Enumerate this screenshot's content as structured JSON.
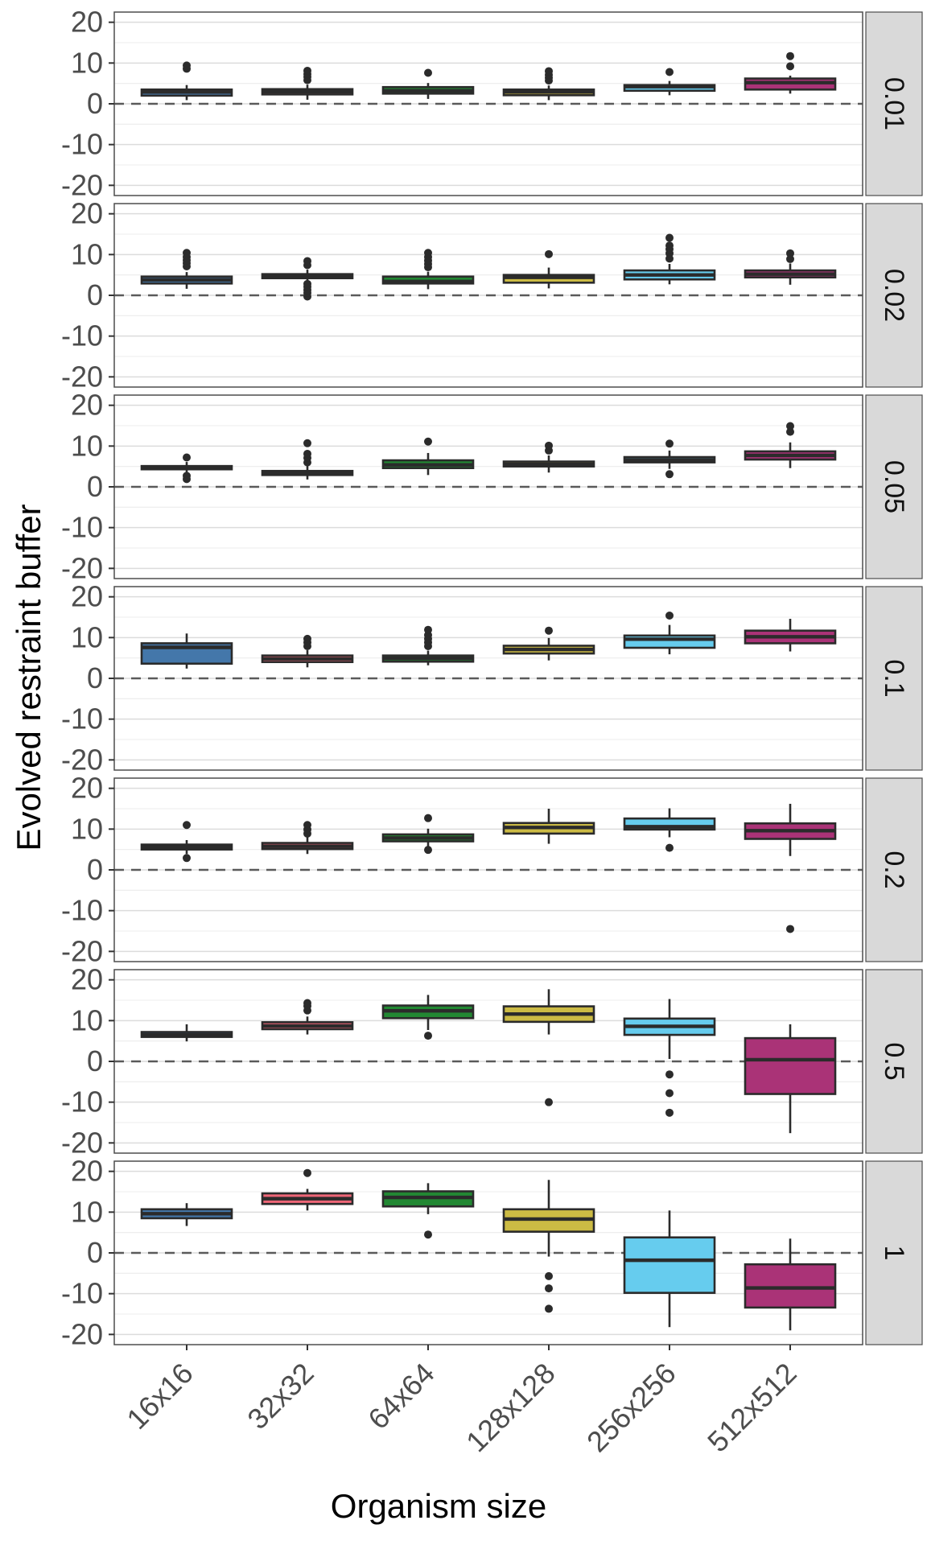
{
  "figure": {
    "y_axis_title": "Evolved restraint buffer",
    "x_axis_title": "Organism size"
  },
  "chart_data": {
    "type": "boxplot",
    "title": "",
    "xlabel": "Organism size",
    "ylabel": "Evolved restraint buffer",
    "layout_hint": "7 stacked facet rows sharing the x-axis; facet strip labels rotated on the right; dashed reference line at y=0; grid on (major -20..20 step 10, minor step 5); x tick labels rotated 45 degrees",
    "categories": [
      "16x16",
      "32x32",
      "64x64",
      "128x128",
      "256x256",
      "512x512"
    ],
    "category_colors": [
      "#4477AA",
      "#EE6677",
      "#228833",
      "#CCBB44",
      "#66CCEE",
      "#AA3377"
    ],
    "y_ticks": [
      20,
      10,
      0,
      -10,
      -20
    ],
    "ylim": [
      -22.5,
      22.5
    ],
    "grid": {
      "major": [
        -20,
        -10,
        0,
        10,
        20
      ],
      "minor": [
        -15,
        -5,
        5,
        15
      ]
    },
    "reference_line_y": 0,
    "facet_variable_values": [
      "0.01",
      "0.02",
      "0.05",
      "0.1",
      "0.2",
      "0.5",
      "1"
    ],
    "style": {
      "strip_bg": "#d9d9d9",
      "strip_text": "#111111",
      "panel_border": "#4d4d4d",
      "grid_major": "#dcdcdc",
      "grid_minor": "#ececec",
      "box_stroke": "#2b2b2b",
      "ref_line": "#5a5a5a",
      "tick_color": "#333333",
      "tick_label_color": "#4d4d4d",
      "title_color": "#000000"
    },
    "facets": [
      {
        "label": "0.01",
        "boxes": [
          {
            "category": "16x16",
            "whisker_low": 0.9,
            "q1": 2.0,
            "median": 2.9,
            "q3": 3.5,
            "whisker_high": 4.6,
            "outliers": [
              8.6,
              9.4
            ]
          },
          {
            "category": "32x32",
            "whisker_low": 1.0,
            "q1": 2.3,
            "median": 3.0,
            "q3": 3.6,
            "whisker_high": 4.7,
            "outliers": [
              5.8,
              6.6,
              7.3,
              8.1
            ]
          },
          {
            "category": "64x64",
            "whisker_low": 1.2,
            "q1": 2.5,
            "median": 3.2,
            "q3": 4.1,
            "whisker_high": 5.1,
            "outliers": [
              7.6
            ]
          },
          {
            "category": "128x128",
            "whisker_low": 0.9,
            "q1": 2.1,
            "median": 2.9,
            "q3": 3.5,
            "whisker_high": 4.5,
            "outliers": [
              5.7,
              6.4,
              7.1,
              8.0
            ]
          },
          {
            "category": "256x256",
            "whisker_low": 2.1,
            "q1": 3.2,
            "median": 4.2,
            "q3": 4.6,
            "whisker_high": 5.6,
            "outliers": [
              7.8
            ]
          },
          {
            "category": "512x512",
            "whisker_low": 2.5,
            "q1": 3.5,
            "median": 5.2,
            "q3": 6.2,
            "whisker_high": 6.9,
            "outliers": [
              9.2,
              11.7
            ]
          }
        ]
      },
      {
        "label": "0.02",
        "boxes": [
          {
            "category": "16x16",
            "whisker_low": 1.6,
            "q1": 2.9,
            "median": 3.8,
            "q3": 4.6,
            "whisker_high": 5.7,
            "outliers": [
              7.1,
              7.9,
              8.6,
              9.4,
              10.4
            ]
          },
          {
            "category": "32x32",
            "whisker_low": 3.3,
            "q1": 4.2,
            "median": 4.7,
            "q3": 5.2,
            "whisker_high": 6.3,
            "outliers": [
              -0.3,
              0.6,
              1.3,
              2.1,
              2.8,
              7.4,
              8.4
            ]
          },
          {
            "category": "64x64",
            "whisker_low": 1.5,
            "q1": 2.9,
            "median": 3.4,
            "q3": 4.6,
            "whisker_high": 5.8,
            "outliers": [
              6.9,
              7.7,
              8.5,
              9.4,
              10.4
            ]
          },
          {
            "category": "128x128",
            "whisker_low": 1.7,
            "q1": 3.1,
            "median": 4.4,
            "q3": 5.0,
            "whisker_high": 6.8,
            "outliers": [
              10.1
            ]
          },
          {
            "category": "256x256",
            "whisker_low": 2.7,
            "q1": 3.9,
            "median": 5.0,
            "q3": 6.1,
            "whisker_high": 7.7,
            "outliers": [
              9.0,
              10.3,
              11.3,
              12.2,
              14.1
            ]
          },
          {
            "category": "512x512",
            "whisker_low": 2.6,
            "q1": 4.4,
            "median": 5.2,
            "q3": 6.1,
            "whisker_high": 7.8,
            "outliers": [
              8.9,
              10.3
            ]
          }
        ]
      },
      {
        "label": "0.05",
        "boxes": [
          {
            "category": "16x16",
            "whisker_low": 3.3,
            "q1": 4.3,
            "median": 4.7,
            "q3": 5.1,
            "whisker_high": 6.1,
            "outliers": [
              1.9,
              2.7,
              7.2
            ]
          },
          {
            "category": "32x32",
            "whisker_low": 1.8,
            "q1": 2.9,
            "median": 3.3,
            "q3": 3.9,
            "whisker_high": 5.1,
            "outliers": [
              6.0,
              7.1,
              8.1,
              10.7
            ]
          },
          {
            "category": "64x64",
            "whisker_low": 2.9,
            "q1": 4.6,
            "median": 5.4,
            "q3": 6.5,
            "whisker_high": 8.3,
            "outliers": [
              11.1
            ]
          },
          {
            "category": "128x128",
            "whisker_low": 3.5,
            "q1": 5.0,
            "median": 5.5,
            "q3": 6.2,
            "whisker_high": 7.7,
            "outliers": [
              8.9,
              10.1
            ]
          },
          {
            "category": "256x256",
            "whisker_low": 4.4,
            "q1": 6.0,
            "median": 6.6,
            "q3": 7.3,
            "whisker_high": 8.9,
            "outliers": [
              3.1,
              10.6
            ]
          },
          {
            "category": "512x512",
            "whisker_low": 4.6,
            "q1": 6.7,
            "median": 7.7,
            "q3": 8.7,
            "whisker_high": 10.9,
            "outliers": [
              13.5,
              14.9
            ]
          }
        ]
      },
      {
        "label": "0.1",
        "boxes": [
          {
            "category": "16x16",
            "whisker_low": 2.4,
            "q1": 3.6,
            "median": 7.6,
            "q3": 8.6,
            "whisker_high": 11.0,
            "outliers": []
          },
          {
            "category": "32x32",
            "whisker_low": 2.7,
            "q1": 4.0,
            "median": 4.8,
            "q3": 5.6,
            "whisker_high": 6.9,
            "outliers": [
              7.9,
              8.8,
              9.7
            ]
          },
          {
            "category": "64x64",
            "whisker_low": 3.2,
            "q1": 4.1,
            "median": 4.9,
            "q3": 5.6,
            "whisker_high": 6.8,
            "outliers": [
              7.9,
              8.8,
              9.7,
              10.6,
              11.9
            ]
          },
          {
            "category": "128x128",
            "whisker_low": 4.4,
            "q1": 6.1,
            "median": 7.1,
            "q3": 8.0,
            "whisker_high": 9.9,
            "outliers": [
              11.7
            ]
          },
          {
            "category": "256x256",
            "whisker_low": 5.9,
            "q1": 7.5,
            "median": 9.6,
            "q3": 10.5,
            "whisker_high": 13.1,
            "outliers": [
              15.4
            ]
          },
          {
            "category": "512x512",
            "whisker_low": 6.6,
            "q1": 8.6,
            "median": 10.2,
            "q3": 11.7,
            "whisker_high": 14.6,
            "outliers": []
          }
        ]
      },
      {
        "label": "0.2",
        "boxes": [
          {
            "category": "16x16",
            "whisker_low": 3.9,
            "q1": 5.0,
            "median": 5.6,
            "q3": 6.2,
            "whisker_high": 7.3,
            "outliers": [
              2.9,
              11.0
            ]
          },
          {
            "category": "32x32",
            "whisker_low": 3.9,
            "q1": 5.1,
            "median": 5.8,
            "q3": 6.6,
            "whisker_high": 8.1,
            "outliers": [
              8.9,
              9.9,
              11.0
            ]
          },
          {
            "category": "64x64",
            "whisker_low": 5.8,
            "q1": 7.0,
            "median": 7.8,
            "q3": 8.7,
            "whisker_high": 10.1,
            "outliers": [
              4.9,
              12.7
            ]
          },
          {
            "category": "128x128",
            "whisker_low": 6.4,
            "q1": 8.9,
            "median": 10.4,
            "q3": 11.5,
            "whisker_high": 15.0,
            "outliers": []
          },
          {
            "category": "256x256",
            "whisker_low": 8.0,
            "q1": 9.9,
            "median": 10.6,
            "q3": 12.6,
            "whisker_high": 15.1,
            "outliers": [
              5.4
            ]
          },
          {
            "category": "512x512",
            "whisker_low": 3.4,
            "q1": 7.6,
            "median": 9.6,
            "q3": 11.4,
            "whisker_high": 16.2,
            "outliers": [
              -14.5
            ]
          }
        ]
      },
      {
        "label": "0.5",
        "boxes": [
          {
            "category": "16x16",
            "whisker_low": 4.9,
            "q1": 6.0,
            "median": 6.5,
            "q3": 7.2,
            "whisker_high": 9.1,
            "outliers": []
          },
          {
            "category": "32x32",
            "whisker_low": 6.6,
            "q1": 7.9,
            "median": 8.7,
            "q3": 9.6,
            "whisker_high": 11.0,
            "outliers": [
              12.5,
              13.6,
              14.3
            ]
          },
          {
            "category": "64x64",
            "whisker_low": 7.7,
            "q1": 10.6,
            "median": 12.4,
            "q3": 13.7,
            "whisker_high": 16.3,
            "outliers": [
              6.3
            ]
          },
          {
            "category": "128x128",
            "whisker_low": 6.6,
            "q1": 9.7,
            "median": 11.6,
            "q3": 13.5,
            "whisker_high": 17.7,
            "outliers": [
              -10.0
            ]
          },
          {
            "category": "256x256",
            "whisker_low": 0.6,
            "q1": 6.5,
            "median": 8.6,
            "q3": 10.5,
            "whisker_high": 15.3,
            "outliers": [
              -3.2,
              -7.8,
              -12.6
            ]
          },
          {
            "category": "512x512",
            "whisker_low": -17.6,
            "q1": -8.0,
            "median": 0.4,
            "q3": 5.7,
            "whisker_high": 9.1,
            "outliers": []
          }
        ]
      },
      {
        "label": "1",
        "boxes": [
          {
            "category": "16x16",
            "whisker_low": 6.6,
            "q1": 8.5,
            "median": 9.6,
            "q3": 10.7,
            "whisker_high": 12.2,
            "outliers": []
          },
          {
            "category": "32x32",
            "whisker_low": 10.4,
            "q1": 12.0,
            "median": 13.3,
            "q3": 14.6,
            "whisker_high": 15.7,
            "outliers": [
              19.6
            ]
          },
          {
            "category": "64x64",
            "whisker_low": 9.5,
            "q1": 11.4,
            "median": 13.6,
            "q3": 15.1,
            "whisker_high": 17.1,
            "outliers": [
              4.5
            ]
          },
          {
            "category": "128x128",
            "whisker_low": -0.9,
            "q1": 5.2,
            "median": 8.3,
            "q3": 10.7,
            "whisker_high": 17.9,
            "outliers": [
              -5.7,
              -8.7,
              -13.7
            ]
          },
          {
            "category": "256x256",
            "whisker_low": -18.2,
            "q1": -9.8,
            "median": -1.8,
            "q3": 3.8,
            "whisker_high": 10.4,
            "outliers": []
          },
          {
            "category": "512x512",
            "whisker_low": -19.0,
            "q1": -13.4,
            "median": -8.6,
            "q3": -2.8,
            "whisker_high": 3.5,
            "outliers": []
          }
        ]
      }
    ]
  }
}
